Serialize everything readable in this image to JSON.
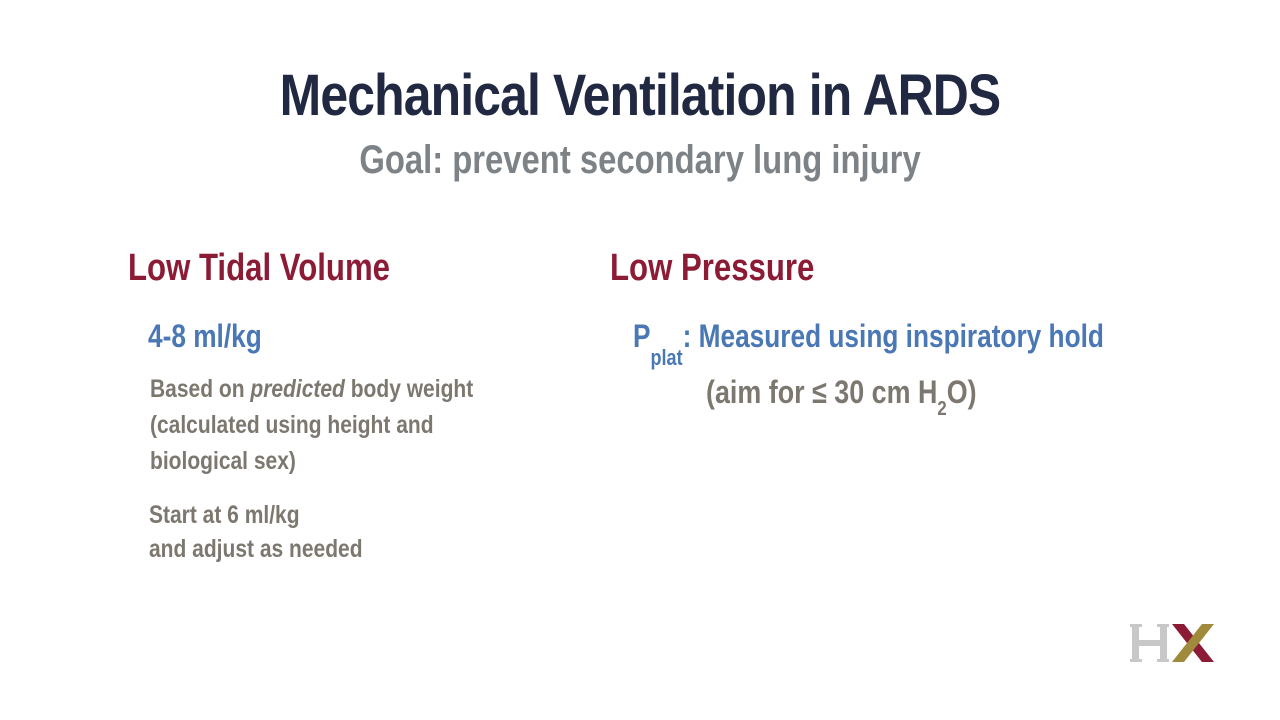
{
  "slide": {
    "title": "Mechanical Ventilation in ARDS",
    "subtitle": "Goal: prevent secondary lung injury"
  },
  "left_column": {
    "heading": "Low Tidal Volume",
    "value": "4-8 ml/kg",
    "based_prefix": "Based on ",
    "based_emphasis": "predicted",
    "based_suffix": " body weight",
    "based_line2": "(calculated using height and",
    "based_line3": "biological sex)",
    "start_line1": "Start at 6 ml/kg",
    "start_line2": "and adjust as needed"
  },
  "right_column": {
    "heading": "Low Pressure",
    "pplat_symbol": "P",
    "pplat_subscript": "plat",
    "pplat_text": ": Measured using inspiratory hold",
    "aim_prefix": "(aim for ≤ 30 cm H",
    "aim_subscript": "2",
    "aim_suffix": "O)"
  },
  "logo": {
    "text": "HX",
    "colors": {
      "h": "#c8c8c8",
      "x_left": "#8c1b36",
      "x_right": "#a08a3c"
    }
  },
  "colors": {
    "title": "#212841",
    "subtitle": "#7d8287",
    "heading": "#8c1b36",
    "blue": "#4a78b5",
    "grey": "#7d786f"
  }
}
